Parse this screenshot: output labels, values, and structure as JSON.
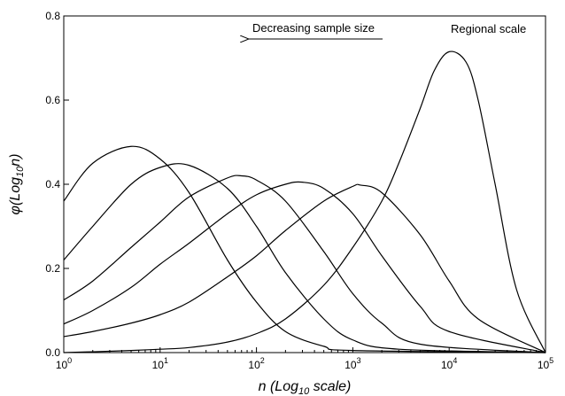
{
  "chart_data": {
    "type": "line",
    "xlabel_main": "n (Log",
    "xlabel_sub": "10",
    "xlabel_tail": " scale)",
    "ylabel_main": "φ(Log",
    "ylabel_sub": "10",
    "ylabel_tail": "n)",
    "xscale": "log",
    "xlim": [
      1,
      100000
    ],
    "ylim": [
      0,
      0.8
    ],
    "yticks": [
      "0.0",
      "0.2",
      "0.4",
      "0.6",
      "0.8"
    ],
    "xticks": [
      {
        "base": "10",
        "exp": "0"
      },
      {
        "base": "10",
        "exp": "1"
      },
      {
        "base": "10",
        "exp": "2"
      },
      {
        "base": "10",
        "exp": "3"
      },
      {
        "base": "10",
        "exp": "4"
      },
      {
        "base": "10",
        "exp": "5"
      }
    ],
    "annotations": {
      "arrow_label": "Decreasing sample size",
      "corner_label": "Regional scale"
    },
    "series": [
      {
        "x": [
          1,
          2,
          5,
          10,
          20,
          50,
          100,
          200,
          500,
          1000,
          100000
        ],
        "y": [
          0.36,
          0.45,
          0.49,
          0.46,
          0.38,
          0.22,
          0.12,
          0.05,
          0.015,
          0.005,
          0.0
        ]
      },
      {
        "x": [
          1,
          2,
          5,
          10,
          20,
          50,
          100,
          200,
          500,
          1000,
          3000,
          100000
        ],
        "y": [
          0.22,
          0.3,
          0.4,
          0.44,
          0.445,
          0.39,
          0.3,
          0.19,
          0.08,
          0.03,
          0.008,
          0.0
        ]
      },
      {
        "x": [
          1,
          2,
          5,
          10,
          20,
          50,
          70,
          100,
          200,
          500,
          1000,
          2000,
          5000,
          100000
        ],
        "y": [
          0.125,
          0.17,
          0.25,
          0.31,
          0.37,
          0.415,
          0.42,
          0.41,
          0.36,
          0.24,
          0.14,
          0.07,
          0.02,
          0.0
        ]
      },
      {
        "x": [
          1,
          2,
          5,
          10,
          20,
          50,
          100,
          200,
          300,
          500,
          1000,
          2000,
          5000,
          10000,
          100000
        ],
        "y": [
          0.068,
          0.1,
          0.155,
          0.21,
          0.26,
          0.33,
          0.375,
          0.4,
          0.405,
          0.39,
          0.33,
          0.23,
          0.11,
          0.05,
          0.0
        ]
      },
      {
        "x": [
          1,
          2,
          5,
          10,
          20,
          50,
          100,
          200,
          500,
          1000,
          1200,
          2000,
          5000,
          10000,
          20000,
          100000
        ],
        "y": [
          0.038,
          0.05,
          0.07,
          0.09,
          0.12,
          0.18,
          0.23,
          0.29,
          0.36,
          0.395,
          0.398,
          0.38,
          0.28,
          0.17,
          0.08,
          0.0
        ]
      },
      {
        "x": [
          1,
          2,
          5,
          10,
          20,
          50,
          100,
          200,
          500,
          1000,
          2000,
          3000,
          5000,
          7000,
          10000,
          15000,
          20000,
          30000,
          50000,
          100000
        ],
        "y": [
          0.0,
          0.002,
          0.005,
          0.008,
          0.012,
          0.025,
          0.045,
          0.08,
          0.16,
          0.25,
          0.36,
          0.45,
          0.58,
          0.67,
          0.715,
          0.69,
          0.6,
          0.4,
          0.15,
          0.0
        ]
      }
    ]
  }
}
